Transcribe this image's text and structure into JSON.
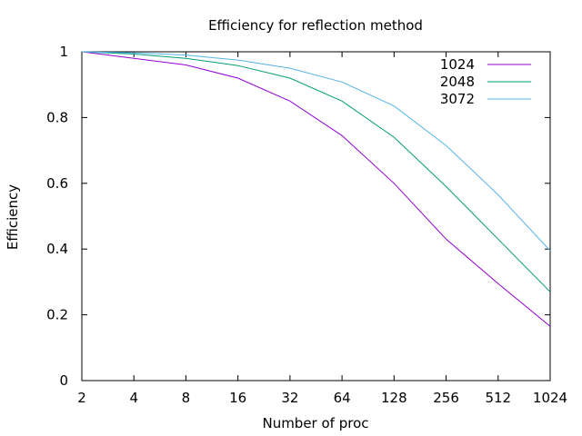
{
  "chart_data": {
    "type": "line",
    "title": "Efficiency for reflection method",
    "xlabel": "Number of proc",
    "ylabel": "Efficiency",
    "xscale": "log2",
    "x_ticks": [
      "2",
      "4",
      "8",
      "16",
      "32",
      "64",
      "128",
      "256",
      "512",
      "1024"
    ],
    "y_ticks": [
      "0",
      "0.2",
      "0.4",
      "0.6",
      "0.8",
      "1"
    ],
    "xlim": [
      2,
      1024
    ],
    "ylim": [
      0,
      1
    ],
    "grid": false,
    "legend_position": "top-right",
    "x": [
      2,
      4,
      8,
      16,
      32,
      64,
      128,
      256,
      512,
      1024
    ],
    "series": [
      {
        "name": "1024",
        "color": "#9400d3",
        "values": [
          1.0,
          0.98,
          0.96,
          0.92,
          0.85,
          0.745,
          0.6,
          0.43,
          0.295,
          0.165
        ]
      },
      {
        "name": "2048",
        "color": "#009e73",
        "values": [
          1.0,
          0.993,
          0.98,
          0.958,
          0.92,
          0.85,
          0.74,
          0.59,
          0.43,
          0.27
        ]
      },
      {
        "name": "3072",
        "color": "#56b4e9",
        "values": [
          1.0,
          0.997,
          0.99,
          0.975,
          0.95,
          0.908,
          0.835,
          0.715,
          0.565,
          0.395
        ]
      }
    ]
  }
}
